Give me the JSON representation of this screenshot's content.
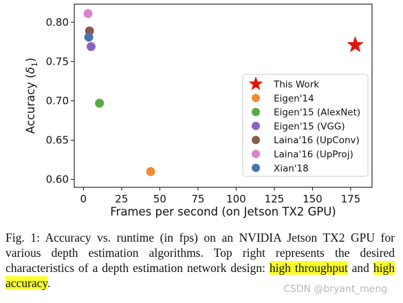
{
  "chart_data": {
    "type": "scatter",
    "xlabel": "Frames per second (on Jetson TX2 GPU)",
    "ylabel": "Accuracy (δ1)",
    "xlim": [
      -6,
      189
    ],
    "ylim": [
      0.59,
      0.823
    ],
    "xticks": [
      0,
      25,
      50,
      75,
      100,
      125,
      150,
      175
    ],
    "yticks": [
      0.6,
      0.65,
      0.7,
      0.75,
      0.8
    ],
    "ytick_labels": [
      "0.60",
      "0.65",
      "0.70",
      "0.75",
      "0.80"
    ],
    "grid": false,
    "legend_position": "lower-right",
    "series": [
      {
        "name": "This Work",
        "marker": "star",
        "color": "#e0140c",
        "x": 178,
        "y": 0.771
      },
      {
        "name": "Eigen'14",
        "marker": "circle",
        "color": "#ee8a32",
        "x": 44,
        "y": 0.61
      },
      {
        "name": "Eigen'15 (AlexNet)",
        "marker": "circle",
        "color": "#5aaa44",
        "x": 10.5,
        "y": 0.697
      },
      {
        "name": "Eigen'15 (VGG)",
        "marker": "circle",
        "color": "#8a63c2",
        "x": 5,
        "y": 0.769
      },
      {
        "name": "Laina'16 (UpConv)",
        "marker": "circle",
        "color": "#8b5a4e",
        "x": 4,
        "y": 0.789
      },
      {
        "name": "Laina'16 (UpProj)",
        "marker": "circle",
        "color": "#dd82cc",
        "x": 3,
        "y": 0.811
      },
      {
        "name": "Xian'18",
        "marker": "circle",
        "color": "#4674b2",
        "x": 3.5,
        "y": 0.781
      }
    ]
  },
  "caption": {
    "prefix": "Fig. 1: Accuracy vs. runtime (in fps) on an NVIDIA Jetson TX2 GPU for various depth estimation algorithms. Top right represents the desired characteristics of a depth estimation network design: ",
    "highlight1": "high throughput",
    "middle": " and ",
    "highlight2": "high accuracy",
    "suffix": "."
  },
  "watermark": "CSDN @bryant_meng",
  "colors": {
    "highlight": "#fbff2e",
    "axis": "#111111"
  }
}
